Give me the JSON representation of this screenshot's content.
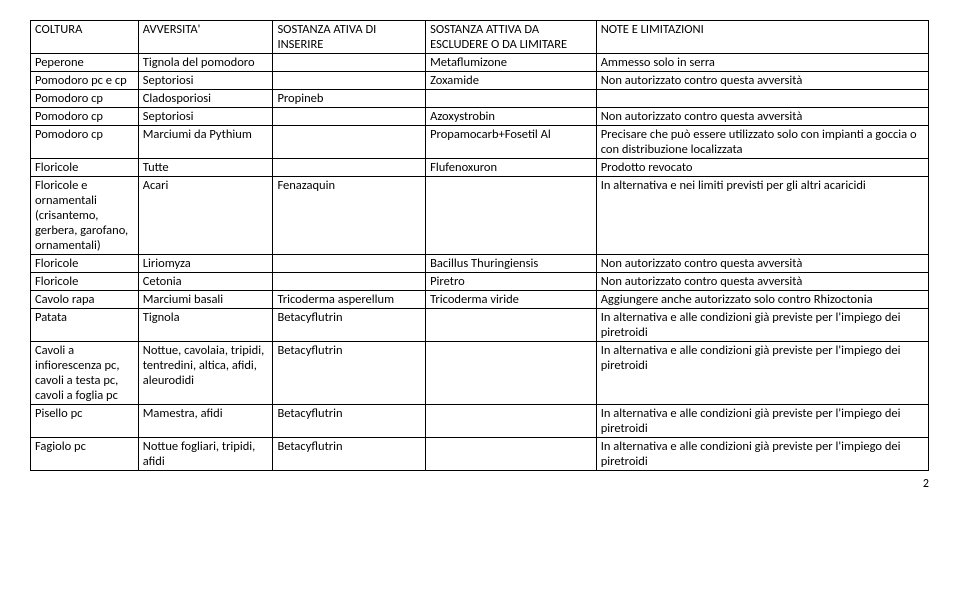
{
  "headers": [
    "COLTURA",
    "AVVERSITA'",
    "SOSTANZA ATIVA DI INSERIRE",
    "SOSTANZA ATTIVA DA ESCLUDERE O DA LIMITARE",
    "NOTE E LIMITAZIONI"
  ],
  "rows": [
    [
      "Peperone",
      "Tignola del pomodoro",
      "",
      "Metaflumizone",
      "Ammesso solo in serra"
    ],
    [
      "Pomodoro pc e cp",
      "Septoriosi",
      "",
      "Zoxamide",
      "Non autorizzato contro questa avversità"
    ],
    [
      "Pomodoro cp",
      "Cladosporiosi",
      "Propineb",
      "",
      ""
    ],
    [
      "Pomodoro cp",
      "Septoriosi",
      "",
      "Azoxystrobin",
      "Non autorizzato contro questa avversità"
    ],
    [
      "Pomodoro cp",
      "Marciumi da Pythium",
      "",
      "Propamocarb+Fosetil Al",
      "Precisare che può essere utilizzato solo con impianti a goccia o con distribuzione localizzata"
    ],
    [
      "Floricole",
      "Tutte",
      "",
      "Flufenoxuron",
      "Prodotto revocato"
    ],
    [
      "Floricole e ornamentali (crisantemo, gerbera, garofano, ornamentali)",
      "Acari",
      "Fenazaquin",
      "",
      "In alternativa e nei limiti previsti per gli altri acaricidi"
    ],
    [
      "Floricole",
      "Liriomyza",
      "",
      "Bacillus Thuringiensis",
      "Non autorizzato contro questa avversità"
    ],
    [
      "Floricole",
      "Cetonia",
      "",
      "Piretro",
      "Non autorizzato contro questa avversità"
    ],
    [
      "Cavolo rapa",
      "Marciumi basali",
      "Tricoderma asperellum",
      "Tricoderma viride",
      "Aggiungere anche autorizzato solo contro Rhizoctonia"
    ],
    [
      "Patata",
      "Tignola",
      "Betacyflutrin",
      "",
      "In alternativa e alle condizioni già previste per l'impiego dei piretroidi"
    ],
    [
      "Cavoli a infiorescenza pc, cavoli a testa pc, cavoli a foglia pc",
      "Nottue, cavolaia, tripidi, tentredini, altica, afidi, aleurodidi",
      "Betacyflutrin",
      "",
      "In alternativa e alle condizioni già previste per l'impiego dei piretroidi"
    ],
    [
      "Pisello pc",
      "Mamestra, afidi",
      "Betacyflutrin",
      "",
      "In alternativa e alle condizioni già previste per l'impiego dei piretroidi"
    ],
    [
      "Fagiolo pc",
      "Nottue fogliari, tripidi, afidi",
      "Betacyflutrin",
      "",
      "In alternativa e alle condizioni già previste per l'impiego dei piretroidi"
    ]
  ],
  "page_number": "2"
}
